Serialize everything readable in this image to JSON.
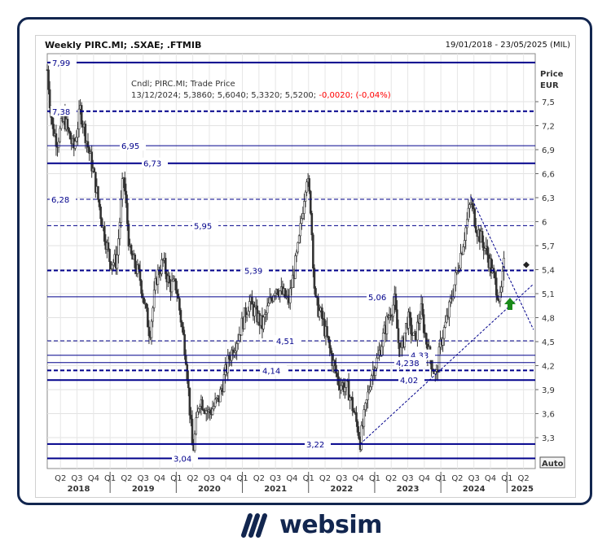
{
  "header": {
    "title": "Weekly PIRC.MI; .SXAE; .FTMIB",
    "date_range": "19/01/2018 - 23/05/2025 (MIL)"
  },
  "legend": {
    "line1": "Cndl; PIRC.MI; Trade Price",
    "values": "13/12/2024; 5,3860; 5,6040; 5,3320; 5,5200;",
    "change": "-0,0020; (-0,04%)"
  },
  "axis": {
    "title1": "Price",
    "title2": "EUR",
    "auto_label": "Auto"
  },
  "logo": {
    "text": "websim"
  },
  "colors": {
    "level": "#00008b",
    "candle": "#333333",
    "change": "#ff0000",
    "arrow": "#1a8a1a"
  },
  "chart_data": {
    "type": "candlestick",
    "ylabel": "Price EUR",
    "ylim": [
      2.95,
      8.05
    ],
    "yticks": [
      "3,3",
      "3,6",
      "3,9",
      "4,2",
      "4,5",
      "4,8",
      "5,1",
      "5,4",
      "5,7",
      "6",
      "6,3",
      "6,6",
      "6,9",
      "7,2",
      "7,5"
    ],
    "ytick_values": [
      3.3,
      3.6,
      3.9,
      4.2,
      4.5,
      4.8,
      5.1,
      5.4,
      5.7,
      6.0,
      6.3,
      6.6,
      6.9,
      7.2,
      7.5
    ],
    "xlim": [
      "2018-01-19",
      "2025-05-23"
    ],
    "quarters": [
      "Q2",
      "Q3",
      "Q4",
      "Q1",
      "Q2",
      "Q3",
      "Q4",
      "Q1",
      "Q2",
      "Q3",
      "Q4",
      "Q1",
      "Q2",
      "Q3",
      "Q4",
      "Q1",
      "Q2",
      "Q3",
      "Q4",
      "Q1",
      "Q2",
      "Q3",
      "Q4",
      "Q1",
      "Q2",
      "Q3",
      "Q4",
      "Q1",
      "Q2"
    ],
    "years": [
      "2018",
      "2019",
      "2020",
      "2021",
      "2022",
      "2023",
      "2024",
      "2025"
    ],
    "grid": true,
    "price_path": [
      [
        2018.05,
        7.9
      ],
      [
        2018.12,
        7.2
      ],
      [
        2018.2,
        7.0
      ],
      [
        2018.3,
        7.3
      ],
      [
        2018.45,
        6.9
      ],
      [
        2018.55,
        7.4
      ],
      [
        2018.65,
        7.0
      ],
      [
        2018.75,
        6.6
      ],
      [
        2018.9,
        5.9
      ],
      [
        2019.0,
        5.5
      ],
      [
        2019.1,
        5.5
      ],
      [
        2019.2,
        6.6
      ],
      [
        2019.3,
        5.6
      ],
      [
        2019.45,
        5.3
      ],
      [
        2019.6,
        4.6
      ],
      [
        2019.7,
        5.3
      ],
      [
        2019.8,
        5.5
      ],
      [
        2019.9,
        5.2
      ],
      [
        2020.0,
        5.2
      ],
      [
        2020.15,
        4.3
      ],
      [
        2020.25,
        3.1
      ],
      [
        2020.35,
        3.8
      ],
      [
        2020.5,
        3.6
      ],
      [
        2020.65,
        3.8
      ],
      [
        2020.8,
        4.3
      ],
      [
        2020.95,
        4.6
      ],
      [
        2021.1,
        5.0
      ],
      [
        2021.3,
        4.7
      ],
      [
        2021.5,
        5.2
      ],
      [
        2021.7,
        5.0
      ],
      [
        2021.85,
        5.7
      ],
      [
        2021.97,
        6.6
      ],
      [
        2022.03,
        6.2
      ],
      [
        2022.1,
        5.0
      ],
      [
        2022.2,
        4.8
      ],
      [
        2022.35,
        4.3
      ],
      [
        2022.45,
        4.0
      ],
      [
        2022.6,
        3.9
      ],
      [
        2022.75,
        3.4
      ],
      [
        2022.78,
        3.25
      ],
      [
        2022.85,
        3.6
      ],
      [
        2022.95,
        4.1
      ],
      [
        2023.05,
        4.3
      ],
      [
        2023.2,
        4.8
      ],
      [
        2023.3,
        5.0
      ],
      [
        2023.38,
        4.3
      ],
      [
        2023.5,
        4.8
      ],
      [
        2023.6,
        4.5
      ],
      [
        2023.7,
        4.9
      ],
      [
        2023.8,
        4.4
      ],
      [
        2023.93,
        4.05
      ],
      [
        2024.0,
        4.5
      ],
      [
        2024.1,
        4.8
      ],
      [
        2024.2,
        5.2
      ],
      [
        2024.35,
        5.8
      ],
      [
        2024.45,
        6.25
      ],
      [
        2024.55,
        5.9
      ],
      [
        2024.7,
        5.6
      ],
      [
        2024.8,
        5.3
      ],
      [
        2024.9,
        5.0
      ],
      [
        2024.96,
        5.5
      ]
    ],
    "levels": [
      {
        "value": 7.99,
        "label": "7,99",
        "style": "solid-thick"
      },
      {
        "value": 7.38,
        "label": "7,38",
        "style": "dashed-thick"
      },
      {
        "value": 6.95,
        "label": "6,95",
        "style": "solid"
      },
      {
        "value": 6.73,
        "label": "6,73",
        "style": "solid-thick"
      },
      {
        "value": 6.28,
        "label": "6,28",
        "style": "dashed"
      },
      {
        "value": 5.95,
        "label": "5,95",
        "style": "dashed"
      },
      {
        "value": 5.39,
        "label": "5,39",
        "style": "dashed-thick"
      },
      {
        "value": 5.06,
        "label": "5,06",
        "style": "solid"
      },
      {
        "value": 4.51,
        "label": "4,51",
        "style": "dashed"
      },
      {
        "value": 4.33,
        "label": "4,33",
        "style": "solid"
      },
      {
        "value": 4.238,
        "label": "4,238",
        "style": "solid"
      },
      {
        "value": 4.14,
        "label": "4,14",
        "style": "dashed-thick"
      },
      {
        "value": 4.02,
        "label": "4,02",
        "style": "solid-thick"
      },
      {
        "value": 3.22,
        "label": "3,22",
        "style": "solid-thick"
      },
      {
        "value": 3.04,
        "label": "3,04",
        "style": "solid-thick"
      }
    ],
    "trendlines": [
      [
        [
          2022.78,
          3.22
        ],
        [
          2025.4,
          5.22
        ]
      ],
      [
        [
          2024.45,
          6.32
        ],
        [
          2025.4,
          4.65
        ]
      ]
    ],
    "marker_value": 5.46
  }
}
